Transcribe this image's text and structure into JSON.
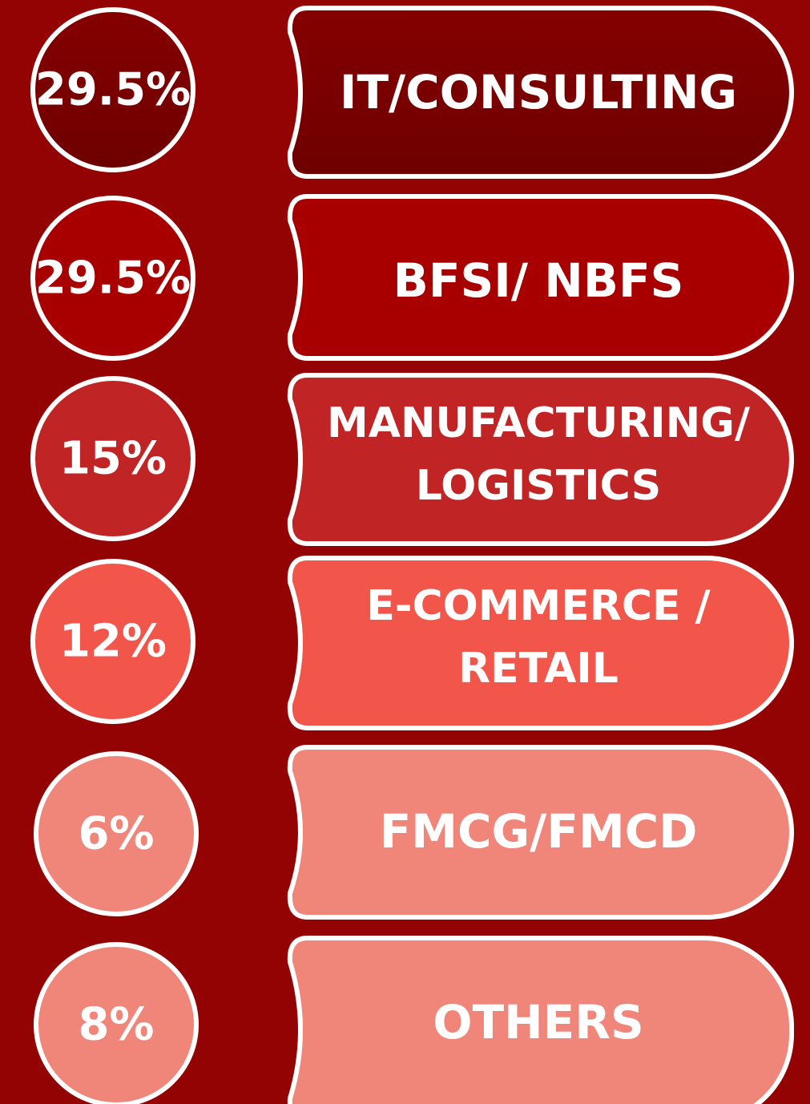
{
  "items": [
    {
      "percent": "29.5%",
      "label": [
        "IT/CONSULTING"
      ]
    },
    {
      "percent": "29.5%",
      "label": [
        "BFSI/ NBFS"
      ]
    },
    {
      "percent": "15%",
      "label": [
        "MANUFACTURING/",
        "LOGISTICS"
      ]
    },
    {
      "percent": "12%",
      "label": [
        "E-COMMERCE /",
        "RETAIL"
      ]
    },
    {
      "percent": "6%",
      "label": [
        "FMCG/FMCD"
      ]
    },
    {
      "percent": "8%",
      "label": [
        "OTHERS"
      ]
    }
  ]
}
